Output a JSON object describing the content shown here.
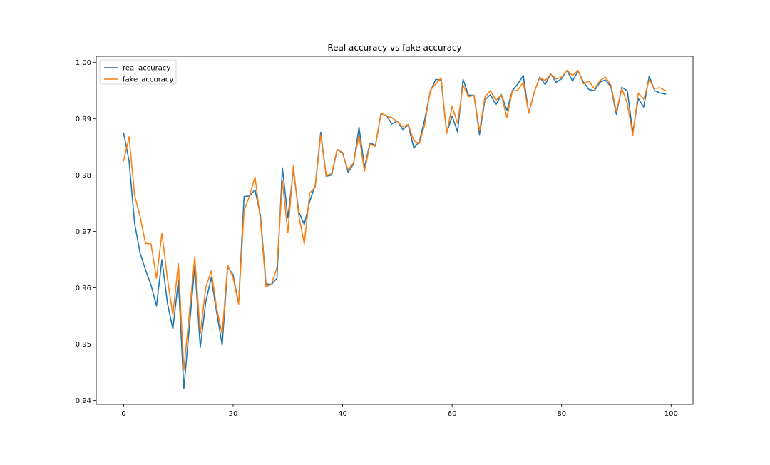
{
  "chart_data": {
    "type": "line",
    "title": "Real accuracy vs fake accuracy",
    "xlabel": "",
    "ylabel": "",
    "xlim": [
      -5,
      104
    ],
    "ylim": [
      0.9393,
      1.0011
    ],
    "xticks": [
      0,
      20,
      40,
      60,
      80,
      100
    ],
    "xtick_labels": [
      "0",
      "20",
      "40",
      "60",
      "80",
      "100"
    ],
    "yticks": [
      0.94,
      0.95,
      0.96,
      0.97,
      0.98,
      0.99,
      1.0
    ],
    "ytick_labels": [
      "0.94",
      "0.95",
      "0.96",
      "0.97",
      "0.98",
      "0.99",
      "1.00"
    ],
    "grid": false,
    "legend_position": "upper-left",
    "series": [
      {
        "name": "real accuracy",
        "color": "#1f77b4",
        "x": [
          0,
          1,
          2,
          3,
          4,
          5,
          6,
          7,
          8,
          9,
          10,
          11,
          12,
          13,
          14,
          15,
          16,
          17,
          18,
          19,
          20,
          21,
          22,
          23,
          24,
          25,
          26,
          27,
          28,
          29,
          30,
          31,
          32,
          33,
          34,
          35,
          36,
          37,
          38,
          39,
          40,
          41,
          42,
          43,
          44,
          45,
          46,
          47,
          48,
          49,
          50,
          51,
          52,
          53,
          54,
          55,
          56,
          57,
          58,
          59,
          60,
          61,
          62,
          63,
          64,
          65,
          66,
          67,
          68,
          69,
          70,
          71,
          72,
          73,
          74,
          75,
          76,
          77,
          78,
          79,
          80,
          81,
          82,
          83,
          84,
          85,
          86,
          87,
          88,
          89,
          90,
          91,
          92,
          93,
          94,
          95,
          96,
          97,
          98,
          99
        ],
        "values": [
          0.9875,
          0.9825,
          0.9715,
          0.9662,
          0.9632,
          0.9605,
          0.9568,
          0.965,
          0.9573,
          0.9527,
          0.9613,
          0.9421,
          0.953,
          0.964,
          0.9494,
          0.9575,
          0.9618,
          0.9556,
          0.9498,
          0.9637,
          0.9623,
          0.9572,
          0.9762,
          0.9763,
          0.9774,
          0.9728,
          0.9607,
          0.9606,
          0.9617,
          0.9813,
          0.9724,
          0.9809,
          0.9735,
          0.9712,
          0.9754,
          0.9782,
          0.9876,
          0.9798,
          0.98,
          0.9845,
          0.984,
          0.9805,
          0.982,
          0.9885,
          0.9814,
          0.9857,
          0.9853,
          0.9909,
          0.9906,
          0.9891,
          0.9896,
          0.9881,
          0.9889,
          0.9848,
          0.9859,
          0.9899,
          0.9948,
          0.997,
          0.9969,
          0.9875,
          0.9905,
          0.9877,
          0.997,
          0.9942,
          0.9942,
          0.9872,
          0.9934,
          0.9943,
          0.9925,
          0.9943,
          0.9915,
          0.995,
          0.9962,
          0.9977,
          0.991,
          0.9947,
          0.9974,
          0.9961,
          0.998,
          0.9965,
          0.9971,
          0.9986,
          0.9967,
          0.9985,
          0.9965,
          0.9952,
          0.995,
          0.9965,
          0.9969,
          0.9957,
          0.9908,
          0.9956,
          0.995,
          0.9876,
          0.9936,
          0.9921,
          0.9976,
          0.995,
          0.9946,
          0.9944
        ]
      },
      {
        "name": "fake_accuracy",
        "color": "#ff7f0e",
        "x": [
          0,
          1,
          2,
          3,
          4,
          5,
          6,
          7,
          8,
          9,
          10,
          11,
          12,
          13,
          14,
          15,
          16,
          17,
          18,
          19,
          20,
          21,
          22,
          23,
          24,
          25,
          26,
          27,
          28,
          29,
          30,
          31,
          32,
          33,
          34,
          35,
          36,
          37,
          38,
          39,
          40,
          41,
          42,
          43,
          44,
          45,
          46,
          47,
          48,
          49,
          50,
          51,
          52,
          53,
          54,
          55,
          56,
          57,
          58,
          59,
          60,
          61,
          62,
          63,
          64,
          65,
          66,
          67,
          68,
          69,
          70,
          71,
          72,
          73,
          74,
          75,
          76,
          77,
          78,
          79,
          80,
          81,
          82,
          83,
          84,
          85,
          86,
          87,
          88,
          89,
          90,
          91,
          92,
          93,
          94,
          95,
          96,
          97,
          98,
          99
        ],
        "values": [
          0.9825,
          0.9868,
          0.9765,
          0.9727,
          0.9679,
          0.9678,
          0.9617,
          0.9697,
          0.9616,
          0.9552,
          0.9643,
          0.9454,
          0.9554,
          0.9655,
          0.9518,
          0.96,
          0.963,
          0.9563,
          0.9518,
          0.964,
          0.9618,
          0.9571,
          0.9737,
          0.9763,
          0.9797,
          0.972,
          0.9602,
          0.9606,
          0.9636,
          0.979,
          0.9698,
          0.9816,
          0.9728,
          0.9678,
          0.9768,
          0.9779,
          0.9871,
          0.9799,
          0.9803,
          0.9846,
          0.9838,
          0.9809,
          0.9822,
          0.987,
          0.9807,
          0.9855,
          0.9851,
          0.991,
          0.9905,
          0.9902,
          0.9895,
          0.9886,
          0.989,
          0.9861,
          0.9856,
          0.989,
          0.995,
          0.9962,
          0.9973,
          0.9874,
          0.9922,
          0.9892,
          0.996,
          0.9939,
          0.9942,
          0.9879,
          0.9939,
          0.995,
          0.9933,
          0.9942,
          0.9902,
          0.9949,
          0.9951,
          0.9965,
          0.991,
          0.9948,
          0.9973,
          0.9968,
          0.9979,
          0.9971,
          0.9974,
          0.9986,
          0.9977,
          0.9986,
          0.9962,
          0.9967,
          0.9953,
          0.9968,
          0.9974,
          0.996,
          0.9913,
          0.9954,
          0.9927,
          0.9871,
          0.9946,
          0.9935,
          0.9969,
          0.9954,
          0.9955,
          0.995
        ]
      }
    ]
  }
}
